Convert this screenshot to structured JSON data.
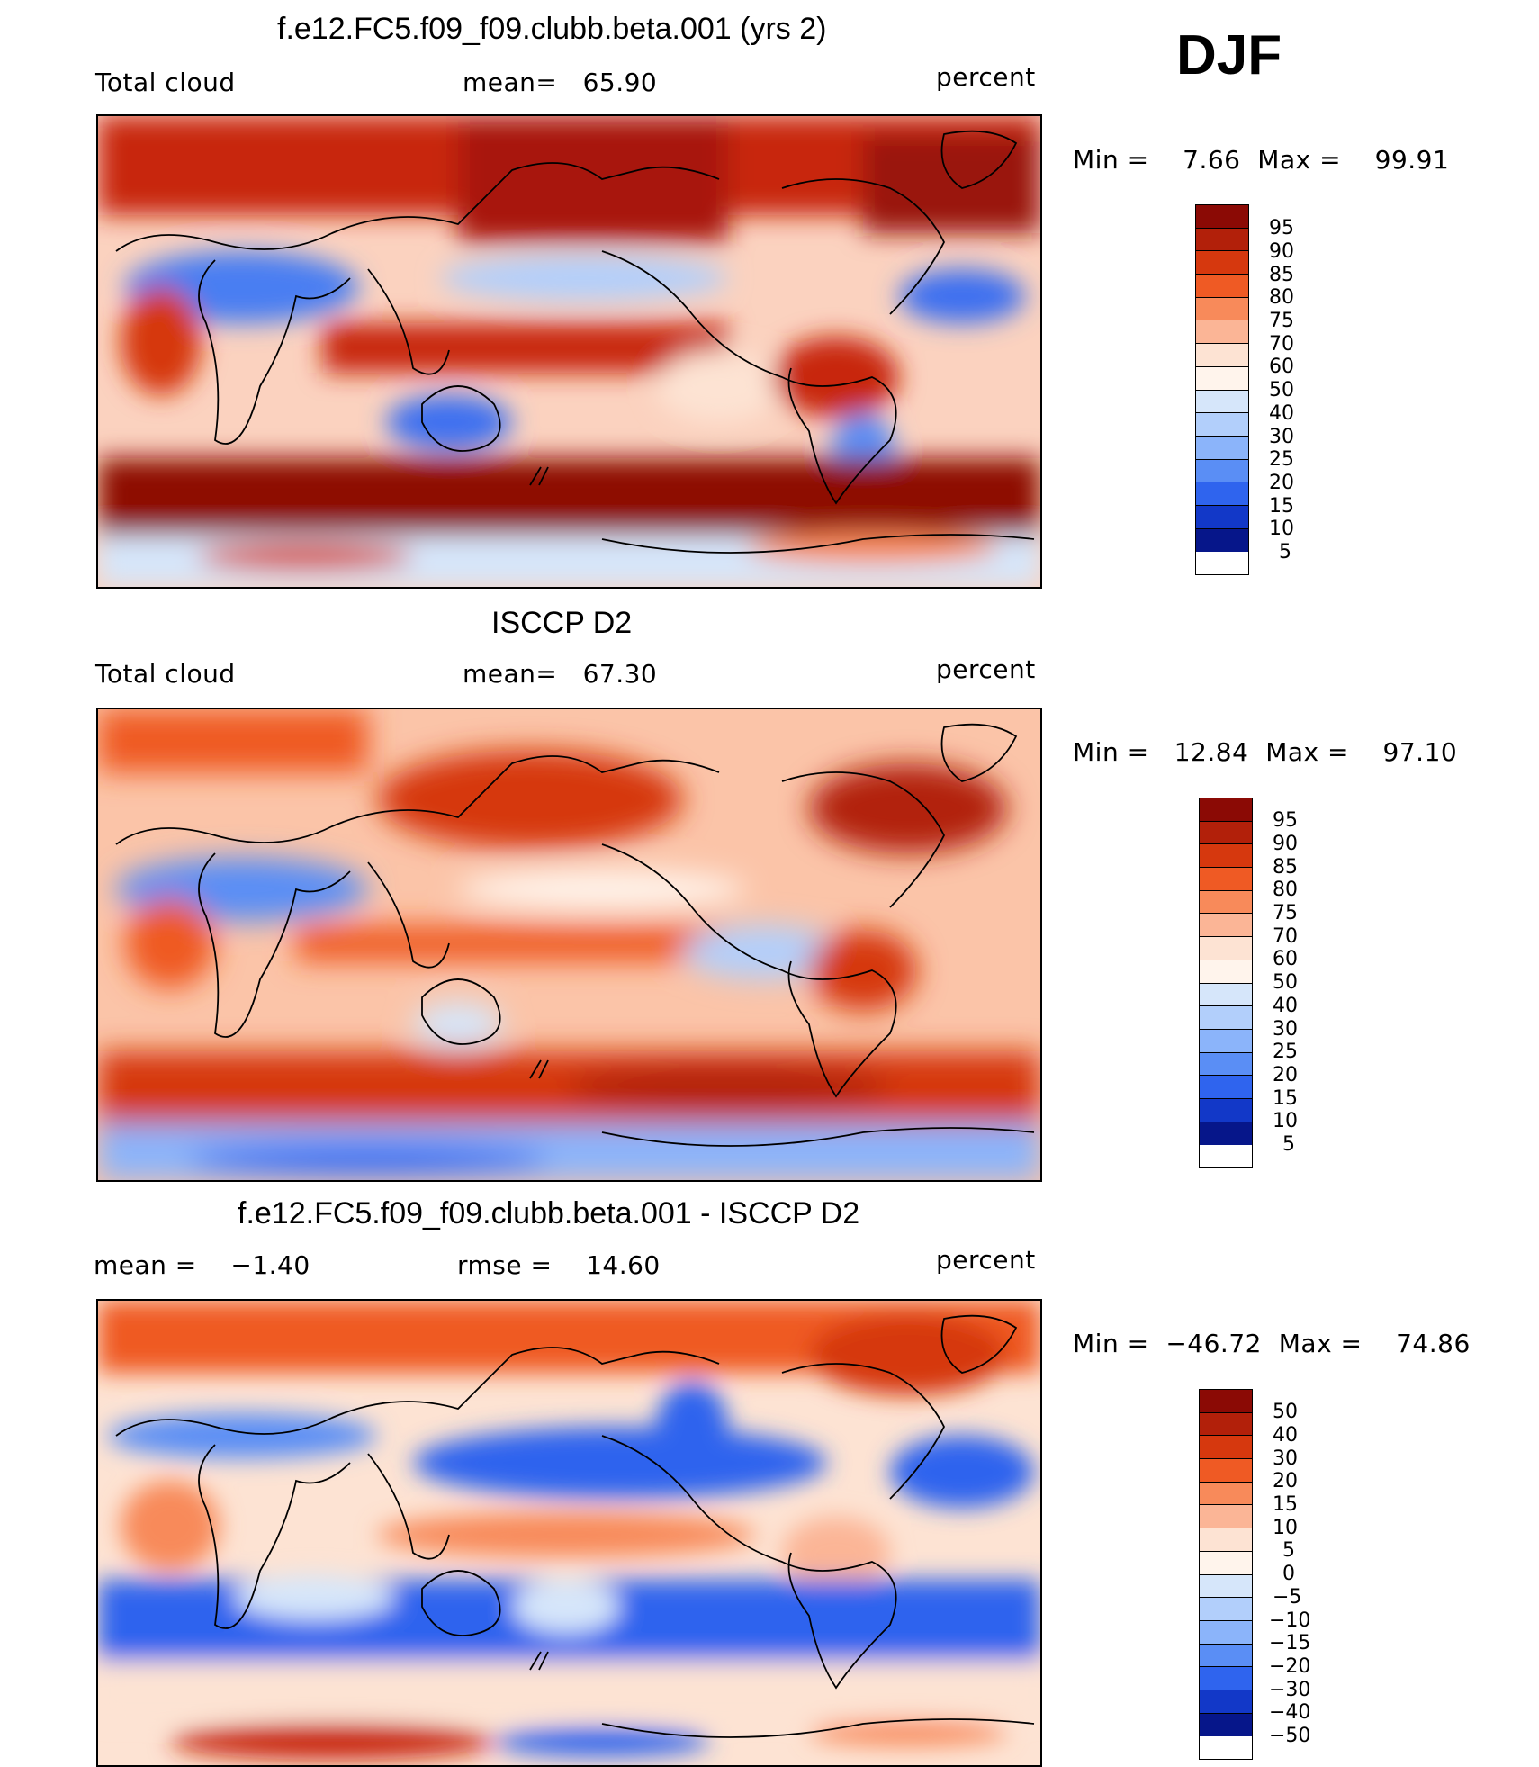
{
  "season": "DJF",
  "panels": [
    {
      "title": "f.e12.FC5.f09_f09.clubb.beta.001 (yrs 2)",
      "left_text": "Total cloud",
      "center_text": "mean=   65.90",
      "right_text": "percent",
      "stats": "Min =    7.66  Max =    99.91",
      "colorbar": {
        "labels": [
          "95",
          "90",
          "85",
          "80",
          "75",
          "70",
          "60",
          "50",
          "40",
          "30",
          "25",
          "20",
          "15",
          "10",
          "5"
        ],
        "colors": [
          "#8b0a05",
          "#b2200a",
          "#d6380e",
          "#ef5a24",
          "#f88a5a",
          "#fbb596",
          "#fde3d3",
          "#fff4ec",
          "#d6e6fa",
          "#b2cffb",
          "#8bb4fa",
          "#5a8ef5",
          "#2f64ee",
          "#1238c8",
          "#06168a"
        ]
      },
      "map": {
        "description_colors": {
          "high": "#a8150a",
          "mid": "#f28b66",
          "low": "#3c6ff0"
        }
      }
    },
    {
      "title": "ISCCP D2",
      "left_text": "Total cloud",
      "center_text": "mean=   67.30",
      "right_text": "percent",
      "stats": "Min =   12.84  Max =    97.10",
      "colorbar": {
        "labels": [
          "95",
          "90",
          "85",
          "80",
          "75",
          "70",
          "60",
          "50",
          "40",
          "30",
          "25",
          "20",
          "15",
          "10",
          "5"
        ],
        "colors": [
          "#8b0a05",
          "#b2200a",
          "#d6380e",
          "#ef5a24",
          "#f88a5a",
          "#fbb596",
          "#fde3d3",
          "#fff4ec",
          "#d6e6fa",
          "#b2cffb",
          "#8bb4fa",
          "#5a8ef5",
          "#2f64ee",
          "#1238c8",
          "#06168a"
        ]
      },
      "map": {
        "description_colors": {
          "high": "#d6380e",
          "mid": "#fbb596",
          "low": "#5a8ef5"
        }
      }
    },
    {
      "title": "f.e12.FC5.f09_f09.clubb.beta.001 - ISCCP D2",
      "left_text": "mean =    −1.40",
      "center_text": "rmse =    14.60",
      "right_text": "percent",
      "stats": "Min =  −46.72  Max =    74.86",
      "colorbar": {
        "labels": [
          "50",
          "40",
          "30",
          "20",
          "15",
          "10",
          "5",
          "0",
          "−5",
          "−10",
          "−15",
          "−20",
          "−30",
          "−40",
          "−50"
        ],
        "colors": [
          "#8b0a05",
          "#b2200a",
          "#d6380e",
          "#ef5a24",
          "#f88a5a",
          "#fbb596",
          "#fde3d3",
          "#fff4ec",
          "#d6e6fa",
          "#b2cffb",
          "#8bb4fa",
          "#5a8ef5",
          "#2f64ee",
          "#1238c8",
          "#06168a"
        ]
      },
      "map": {
        "description_colors": {
          "high": "#d6380e",
          "mid": "#fde3d3",
          "low": "#2f64ee"
        }
      }
    }
  ]
}
